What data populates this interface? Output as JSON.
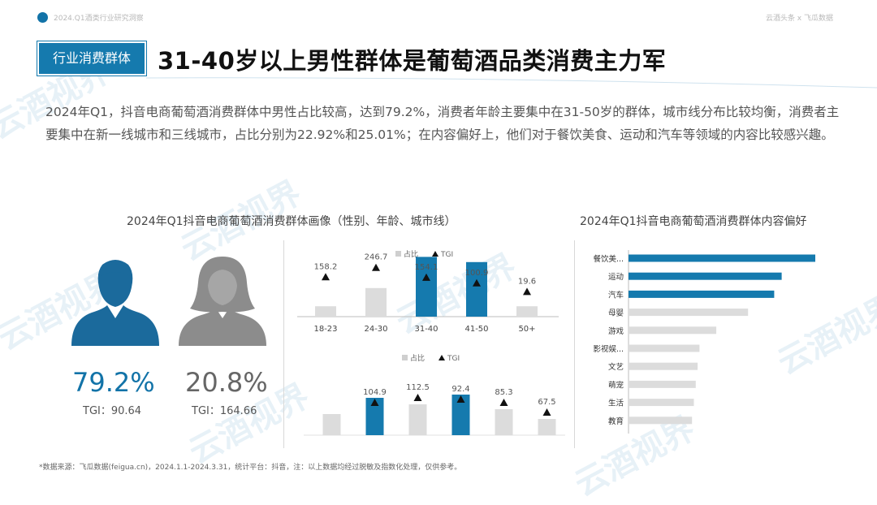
{
  "header": {
    "report_name": "2024.Q1酒类行业研究洞察",
    "brands": "云酒头条 x 飞瓜数据",
    "section_tag": "行业消费群体",
    "headline": "31-40岁以上男性群体是葡萄酒品类消费主力军",
    "summary": "2024年Q1，抖音电商葡萄酒消费群体中男性占比较高，达到79.2%，消费者年龄主要集中在31-50岁的群体，城市线分布比较均衡，消费者主要集中在新一线城市和三线城市，占比分别为22.92%和25.01%；在内容偏好上，他们对于餐饮美食、运动和汽车等领域的内容比较感兴趣。"
  },
  "watermark": "云酒视界",
  "left_panel": {
    "title": "2024年Q1抖音电商葡萄酒消费群体画像（性别、年龄、城市线）",
    "male": {
      "pct": "79.2%",
      "tgi": "TGI：90.64"
    },
    "female": {
      "pct": "20.8%",
      "tgi": "TGI：164.66"
    }
  },
  "right_panel": {
    "title": "2024年Q1抖音电商葡萄酒消费群体内容偏好"
  },
  "footnote": "*数据来源：飞瓜数据(feigua.cn)，2024.1.1-2024.3.31，统计平台：抖音，注：以上数据均经过脱敏及指数化处理，仅供参考。",
  "colors": {
    "brand": "#1273a8",
    "highlight": "#157aae",
    "neutral": "#dcdcdc",
    "icon_male": "#1b6a9c",
    "icon_female": "#8c8c8c"
  },
  "icons": {
    "male": "male-user-icon",
    "female": "female-user-icon"
  },
  "chart_data": [
    {
      "type": "bar",
      "categories": [
        "18-23",
        "24-30",
        "31-40",
        "41-50",
        "50+"
      ],
      "series": [
        {
          "name": "占比",
          "values": [
            8,
            22,
            46,
            42,
            8
          ]
        },
        {
          "name": "TGI",
          "values": [
            158.2,
            246.7,
            154.1,
            100.9,
            19.6
          ]
        }
      ],
      "highlight": [
        "31-40",
        "41-50"
      ],
      "legend_placement": "top"
    },
    {
      "type": "bar",
      "categories": [
        "",
        "",
        "",
        "",
        "",
        ""
      ],
      "series": [
        {
          "name": "占比",
          "values": [
            13,
            23,
            19,
            25,
            16,
            10
          ]
        },
        {
          "name": "TGI",
          "values": [
            null,
            104.9,
            112.5,
            92.4,
            85.3,
            67.5
          ]
        }
      ],
      "highlight_index": [
        1,
        3
      ],
      "legend_placement": "top"
    },
    {
      "type": "bar",
      "orientation": "horizontal",
      "categories": [
        "餐饮美...",
        "运动",
        "汽车",
        "母婴",
        "游戏",
        "影视娱...",
        "文艺",
        "萌宠",
        "生活",
        "教育"
      ],
      "values": [
        100,
        82,
        78,
        64,
        47,
        38,
        37,
        36,
        35,
        34
      ],
      "highlight_count": 3
    }
  ]
}
